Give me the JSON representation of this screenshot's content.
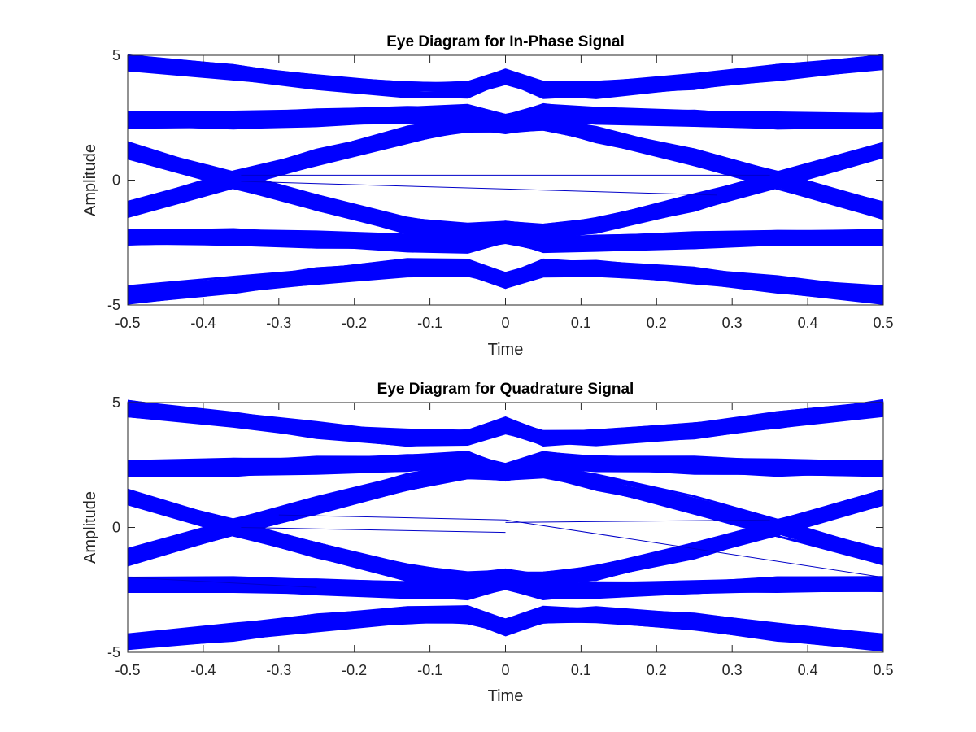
{
  "chart_data": [
    {
      "type": "line",
      "title": "Eye Diagram for In-Phase Signal",
      "xlabel": "Time",
      "ylabel": "Amplitude",
      "xlim": [
        -0.5,
        0.5
      ],
      "ylim": [
        -5,
        5
      ],
      "xticks": [
        -0.5,
        -0.4,
        -0.3,
        -0.2,
        -0.1,
        0,
        0.1,
        0.2,
        0.3,
        0.4,
        0.5
      ],
      "xtick_labels": [
        "-0.5",
        "-0.4",
        "-0.3",
        "-0.2",
        "-0.1",
        "0",
        "0.1",
        "0.2",
        "0.3",
        "0.4",
        "0.5"
      ],
      "yticks": [
        -5,
        0,
        5
      ],
      "ytick_labels": [
        "-5",
        "0",
        "5"
      ],
      "grid": false,
      "line_color": "#0000ff",
      "trace_x": [
        -0.5,
        -0.36,
        -0.25,
        -0.13,
        -0.05,
        0,
        0.05,
        0.12,
        0.25,
        0.36,
        0.5
      ],
      "series": [
        {
          "values": [
            4.7,
            4.3,
            3.9,
            3.6,
            3.6,
            4.1,
            3.6,
            3.6,
            3.9,
            4.3,
            4.7
          ]
        },
        {
          "values": [
            2.4,
            2.4,
            2.5,
            2.6,
            2.7,
            2.3,
            2.7,
            2.6,
            2.5,
            2.4,
            2.4
          ]
        },
        {
          "values": [
            1.2,
            0.0,
            -0.9,
            -1.8,
            -2.1,
            -2.0,
            -2.1,
            -1.8,
            -0.9,
            0.0,
            1.2
          ]
        },
        {
          "values": [
            -1.2,
            0.0,
            0.9,
            1.8,
            2.3,
            2.2,
            2.3,
            1.8,
            0.9,
            0.0,
            -1.2
          ]
        },
        {
          "values": [
            -2.3,
            -2.3,
            -2.4,
            -2.5,
            -2.6,
            -2.2,
            -2.6,
            -2.5,
            -2.4,
            -2.3,
            -2.3
          ]
        },
        {
          "values": [
            -4.6,
            -4.2,
            -3.8,
            -3.5,
            -3.5,
            -4.0,
            -3.5,
            -3.5,
            -3.8,
            -4.2,
            -4.6
          ]
        }
      ],
      "stray_traces": [
        {
          "x": [
            -0.35,
            0.35
          ],
          "y": [
            0.2,
            0.2
          ]
        },
        {
          "x": [
            -0.35,
            0.28
          ],
          "y": [
            -0.05,
            -0.6
          ]
        }
      ]
    },
    {
      "type": "line",
      "title": "Eye Diagram for Quadrature Signal",
      "xlabel": "Time",
      "ylabel": "Amplitude",
      "xlim": [
        -0.5,
        0.5
      ],
      "ylim": [
        -5,
        5
      ],
      "xticks": [
        -0.5,
        -0.4,
        -0.3,
        -0.2,
        -0.1,
        0,
        0.1,
        0.2,
        0.3,
        0.4,
        0.5
      ],
      "xtick_labels": [
        "-0.5",
        "-0.4",
        "-0.3",
        "-0.2",
        "-0.1",
        "0",
        "0.1",
        "0.2",
        "0.3",
        "0.4",
        "0.5"
      ],
      "yticks": [
        -5,
        0,
        5
      ],
      "ytick_labels": [
        "-5",
        "0",
        "5"
      ],
      "grid": false,
      "line_color": "#0000ff",
      "trace_x": [
        -0.5,
        -0.36,
        -0.25,
        -0.13,
        -0.05,
        0,
        0.05,
        0.12,
        0.25,
        0.36,
        0.5
      ],
      "series": [
        {
          "values": [
            4.8,
            4.3,
            3.9,
            3.6,
            3.6,
            4.1,
            3.6,
            3.6,
            3.9,
            4.3,
            4.8
          ]
        },
        {
          "values": [
            2.4,
            2.4,
            2.5,
            2.6,
            2.7,
            2.2,
            2.7,
            2.6,
            2.5,
            2.4,
            2.4
          ]
        },
        {
          "values": [
            1.2,
            0.0,
            -0.9,
            -1.8,
            -2.1,
            -2.0,
            -2.1,
            -1.8,
            -0.9,
            0.0,
            1.2
          ]
        },
        {
          "values": [
            -1.2,
            0.0,
            0.9,
            1.8,
            2.3,
            2.2,
            2.3,
            1.8,
            0.9,
            0.0,
            -1.2
          ]
        },
        {
          "values": [
            -2.3,
            -2.3,
            -2.4,
            -2.5,
            -2.6,
            -2.2,
            -2.6,
            -2.5,
            -2.4,
            -2.3,
            -2.3
          ]
        },
        {
          "values": [
            -4.6,
            -4.2,
            -3.8,
            -3.5,
            -3.5,
            -4.0,
            -3.5,
            -3.5,
            -3.8,
            -4.2,
            -4.6
          ]
        }
      ],
      "stray_traces": [
        {
          "x": [
            -0.3,
            0.0,
            0.5
          ],
          "y": [
            0.5,
            0.3,
            -2.0
          ]
        },
        {
          "x": [
            -0.35,
            0.0
          ],
          "y": [
            0.0,
            -0.2
          ]
        },
        {
          "x": [
            0.0,
            0.35
          ],
          "y": [
            0.2,
            0.3
          ]
        },
        {
          "x": [
            -0.5,
            -0.25
          ],
          "y": [
            -2.0,
            -2.4
          ]
        }
      ]
    }
  ]
}
